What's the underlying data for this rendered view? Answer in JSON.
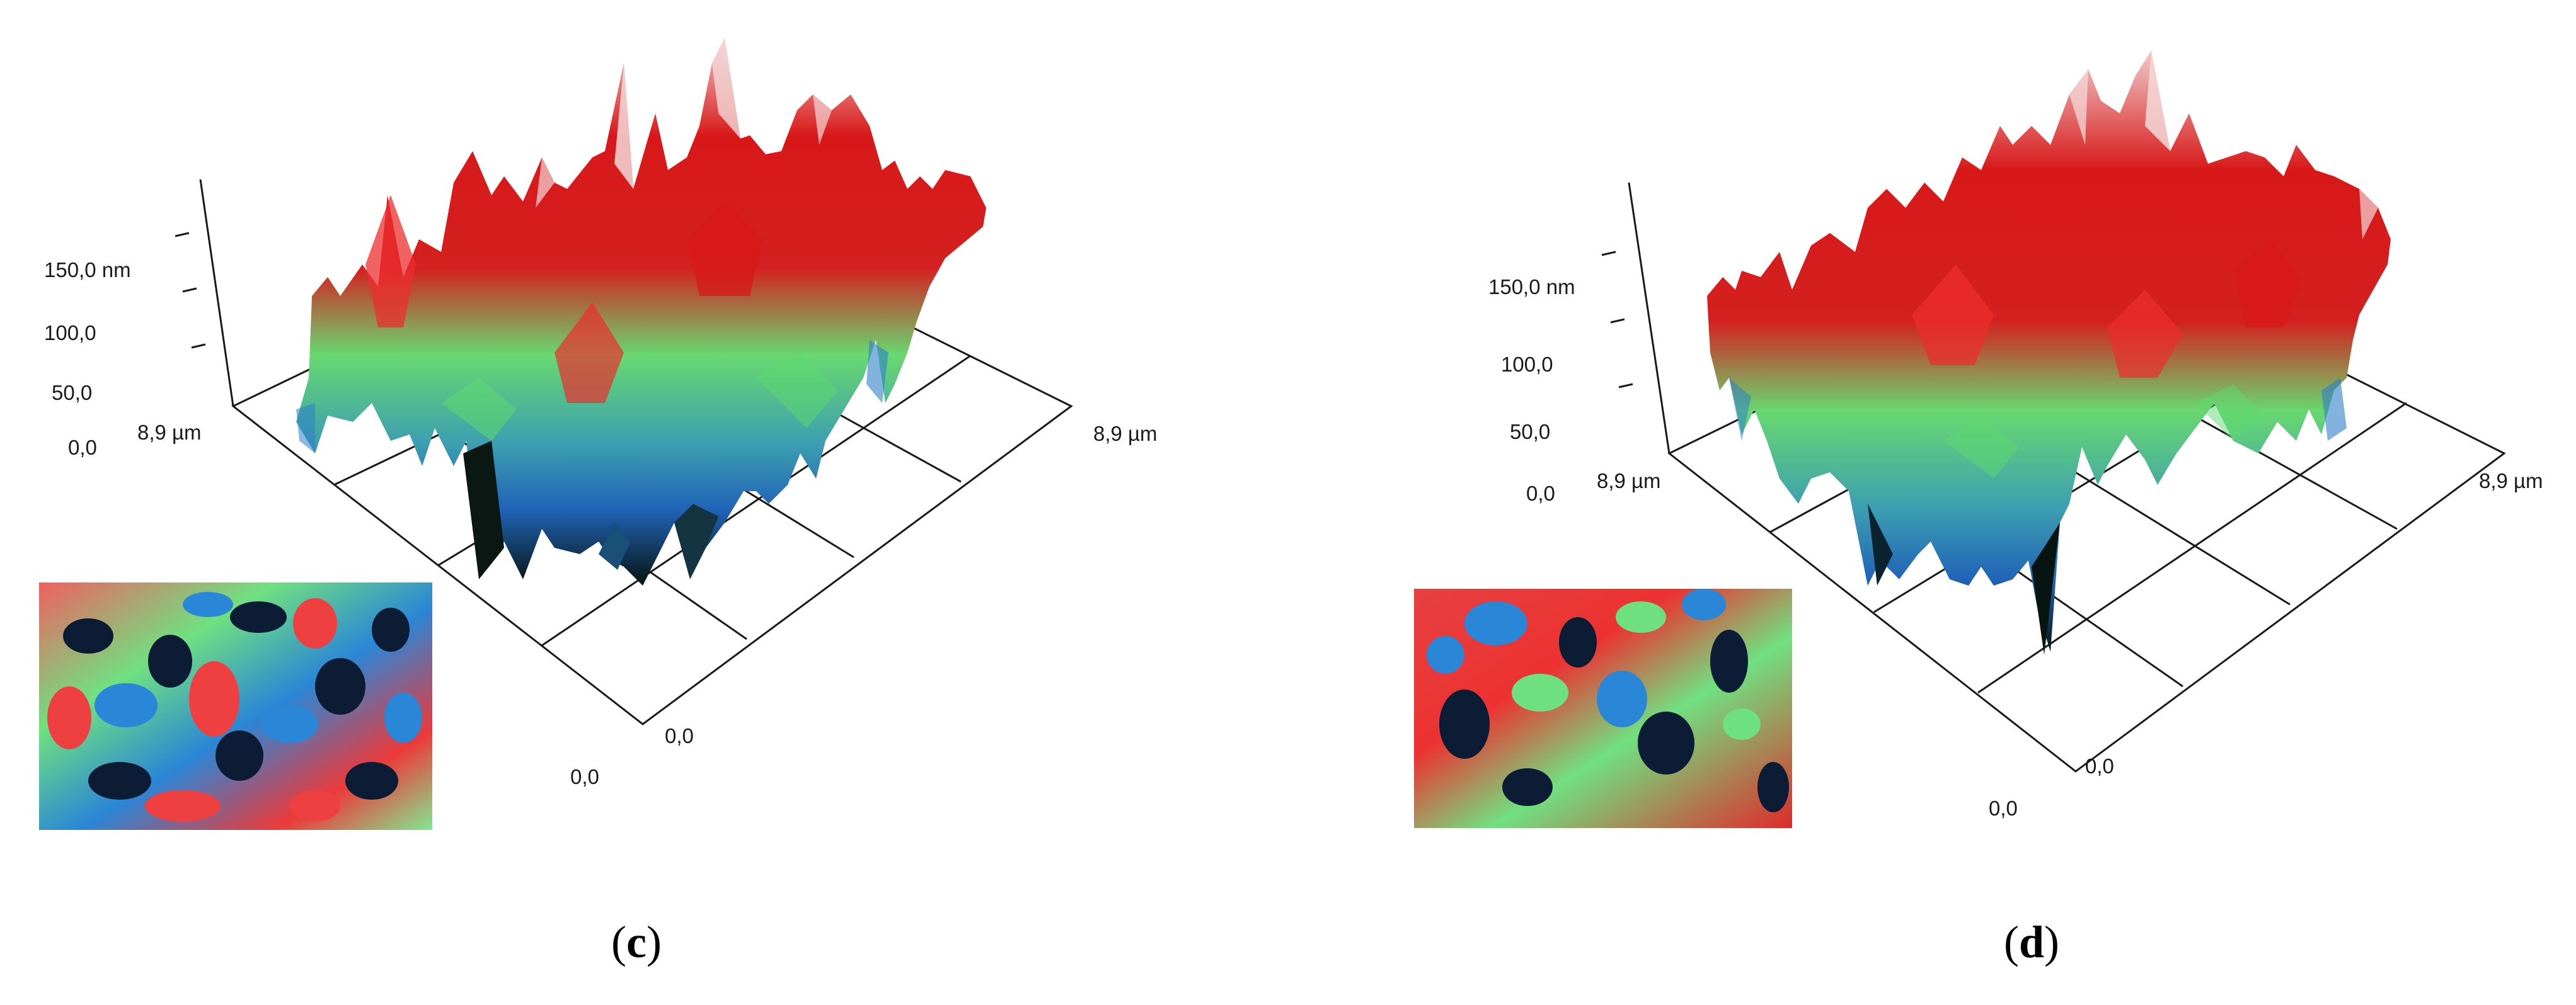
{
  "panels": [
    {
      "id": "c",
      "caption_open": "(",
      "caption_letter": "c",
      "caption_close": ")",
      "z_ticks": [
        "0,0",
        "50,0",
        "100,0",
        "150,0 nm"
      ],
      "x_far_label": "8,9 µm",
      "y_far_label": "8,9 µm",
      "origin_labels": [
        "0,0",
        "0,0"
      ]
    },
    {
      "id": "d",
      "caption_open": "(",
      "caption_letter": "d",
      "caption_close": ")",
      "z_ticks": [
        "0,0",
        "50,0",
        "100,0",
        "150,0 nm"
      ],
      "x_far_label": "8,9 µm",
      "y_far_label": "8,9 µm",
      "origin_labels": [
        "0,0",
        "0,0"
      ]
    }
  ],
  "colors": {
    "peak": "#d81818",
    "highlight": "#f2d0d0",
    "mid": "#5ed86e",
    "low": "#2e7fc8",
    "valley": "#0b1a1a",
    "axis": "#1a1a1a"
  }
}
